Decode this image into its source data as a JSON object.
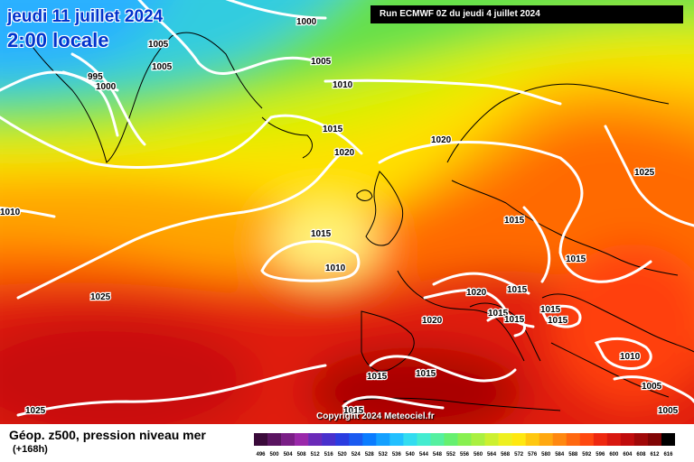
{
  "header": {
    "date": "jeudi 11 juillet 2024",
    "time": "2:00 locale",
    "run": "Run ECMWF 0Z du jeudi 4 juillet 2024"
  },
  "footer": {
    "caption": "Géop. z500, pression niveau mer",
    "hours": "(+168h)",
    "copyright": "Copyright 2024 Meteociel.fr"
  },
  "colors": {
    "ocean_red": "#e0140a",
    "dark_red": "#990000",
    "orange": "#ff6a00",
    "yellow": "#ffee00",
    "green": "#66e04a",
    "cyan": "#33cce0",
    "isobar": "#ffffff"
  },
  "isobar_labels": [
    "1000",
    "1005",
    "1005",
    "995",
    "1000",
    "1005",
    "1010",
    "1015",
    "1020",
    "1020",
    "1025",
    "1010",
    "1015",
    "1010",
    "1015",
    "1025",
    "1020",
    "1015",
    "1015",
    "1020",
    "1015",
    "1015",
    "1015",
    "1015",
    "1015",
    "1015",
    "1010",
    "1005",
    "1025",
    "1015",
    "1005"
  ],
  "legend": {
    "values": [
      "496",
      "500",
      "504",
      "508",
      "512",
      "516",
      "520",
      "524",
      "528",
      "532",
      "536",
      "540",
      "544",
      "548",
      "552",
      "556",
      "560",
      "564",
      "568",
      "572",
      "576",
      "580",
      "584",
      "588",
      "592",
      "596",
      "600",
      "604",
      "608",
      "612",
      "616"
    ],
    "colors": [
      "#3a0a3a",
      "#5a1460",
      "#7a1e86",
      "#9a28aa",
      "#6a2ab8",
      "#4830cc",
      "#2a3ce0",
      "#1a5af0",
      "#0a7cff",
      "#14a0ff",
      "#22c0ff",
      "#33dcf0",
      "#44ecd0",
      "#55f0a0",
      "#66f070",
      "#88f050",
      "#aaf040",
      "#ccf030",
      "#eef020",
      "#ffe810",
      "#ffc810",
      "#ffa810",
      "#ff8810",
      "#ff6810",
      "#ff4810",
      "#ee2810",
      "#d81810",
      "#c00c0c",
      "#a00808",
      "#800404",
      "#000000"
    ]
  }
}
